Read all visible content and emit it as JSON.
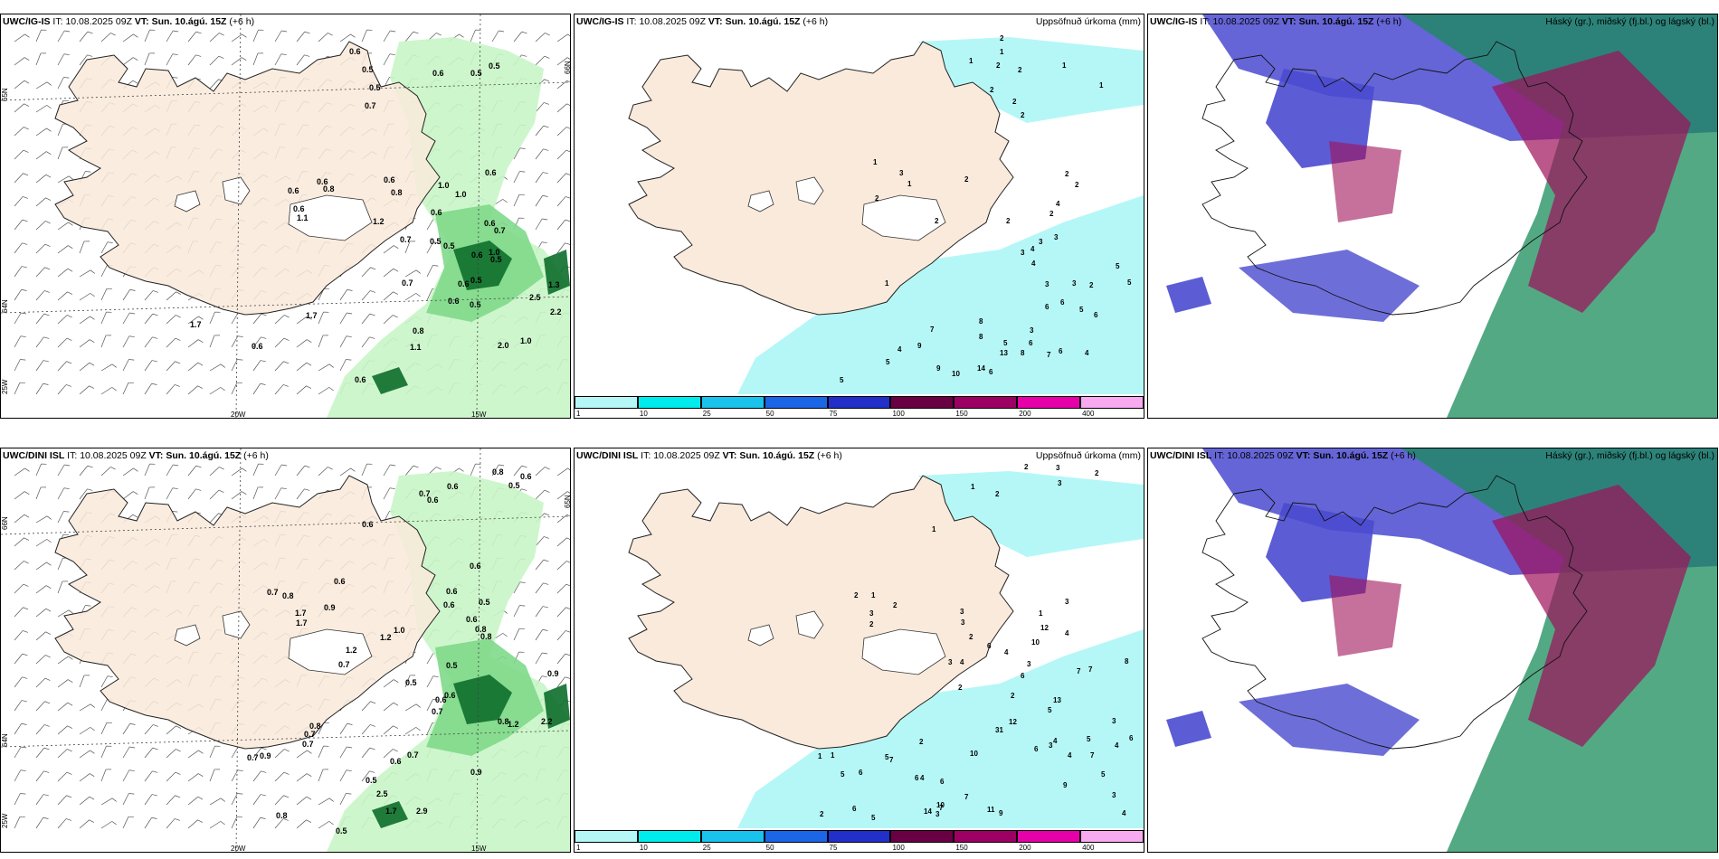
{
  "colors": {
    "land": "#f9eadb",
    "sea": "#ffffff",
    "precip_light": "#c9f5c6",
    "precip_med": "#7fd98a",
    "precip_dark": "#0d6e2b",
    "accum": "#b5f7f7",
    "cloud_high": "#1a8c5a",
    "cloud_mid": "#a0105a",
    "cloud_low": "#4a4ad0"
  },
  "common": {
    "it_label": "IT:",
    "it_value": "10.08.2025 09Z",
    "vt_label": "VT:",
    "vt_value": "Sun. 10.ágú. 15Z",
    "lead": "(+6 h)"
  },
  "titles": {
    "accum": "Uppsöfnuð úrkoma (mm)",
    "cloud": "Háský (gr.), miðský (fj.bl.) og lágský (bl.)"
  },
  "rows": [
    {
      "model": "UWC/IG-IS",
      "precip_labels": [
        [
          "0.6",
          "386",
          "60"
        ],
        [
          "0.5",
          "400",
          "80"
        ],
        [
          "0.5",
          "408",
          "100"
        ],
        [
          "0.7",
          "403",
          "120"
        ],
        [
          "0.6",
          "478",
          "84"
        ],
        [
          "0.5",
          "520",
          "84"
        ],
        [
          "0.5",
          "540",
          "76"
        ],
        [
          "0.6",
          "350",
          "204"
        ],
        [
          "0.8",
          "357",
          "212"
        ],
        [
          "0.6",
          "318",
          "214"
        ],
        [
          "0.6",
          "324",
          "234"
        ],
        [
          "1.1",
          "328",
          "244"
        ],
        [
          "1.2",
          "412",
          "248"
        ],
        [
          "0.6",
          "424",
          "202"
        ],
        [
          "0.8",
          "432",
          "216"
        ],
        [
          "1.0",
          "484",
          "208"
        ],
        [
          "1.0",
          "503",
          "218"
        ],
        [
          "0.6",
          "536",
          "194"
        ],
        [
          "0.6",
          "476",
          "238"
        ],
        [
          "0.7",
          "442",
          "268"
        ],
        [
          "0.5",
          "475",
          "270"
        ],
        [
          "0.5",
          "490",
          "275"
        ],
        [
          "0.6",
          "535",
          "250"
        ],
        [
          "0.7",
          "546",
          "258"
        ],
        [
          "0.6",
          "521",
          "285"
        ],
        [
          "0.5",
          "542",
          "290"
        ],
        [
          "1.0",
          "540",
          "282"
        ],
        [
          "0.7",
          "444",
          "316"
        ],
        [
          "0.6",
          "506",
          "317"
        ],
        [
          "0.5",
          "520",
          "313"
        ],
        [
          "0.6",
          "495",
          "336"
        ],
        [
          "0.5",
          "519",
          "340"
        ],
        [
          "2.5",
          "585",
          "332"
        ],
        [
          "1.3",
          "606",
          "318"
        ],
        [
          "2.2",
          "608",
          "348"
        ],
        [
          "0.8",
          "456",
          "369"
        ],
        [
          "1.1",
          "453",
          "387"
        ],
        [
          "0.6",
          "392",
          "423"
        ],
        [
          "1.7",
          "338",
          "352"
        ],
        [
          "1.7",
          "210",
          "362"
        ],
        [
          "0.6",
          "278",
          "386"
        ],
        [
          "2.0",
          "550",
          "385"
        ],
        [
          "1.0",
          "575",
          "380"
        ]
      ],
      "accum_labels": [
        [
          "2",
          "1105",
          "45"
        ],
        [
          "1",
          "1105",
          "60"
        ],
        [
          "1",
          "1071",
          "70"
        ],
        [
          "2",
          "1101",
          "75"
        ],
        [
          "2",
          "1125",
          "80"
        ],
        [
          "2",
          "1094",
          "102"
        ],
        [
          "2",
          "1119",
          "115"
        ],
        [
          "2",
          "1128",
          "130"
        ],
        [
          "1",
          "1174",
          "75"
        ],
        [
          "1",
          "1215",
          "97"
        ],
        [
          "1",
          "965",
          "182"
        ],
        [
          "3",
          "994",
          "194"
        ],
        [
          "1",
          "1003",
          "206"
        ],
        [
          "2",
          "1066",
          "201"
        ],
        [
          "2",
          "967",
          "222"
        ],
        [
          "2",
          "1033",
          "247"
        ],
        [
          "2",
          "1112",
          "247"
        ],
        [
          "2",
          "1177",
          "195"
        ],
        [
          "2",
          "1188",
          "207"
        ],
        [
          "4",
          "1167",
          "228"
        ],
        [
          "2",
          "1160",
          "239"
        ],
        [
          "3",
          "1165",
          "265"
        ],
        [
          "3",
          "1148",
          "270"
        ],
        [
          "4",
          "1139",
          "278"
        ],
        [
          "3",
          "1128",
          "282"
        ],
        [
          "4",
          "1140",
          "294"
        ],
        [
          "1",
          "978",
          "316"
        ],
        [
          "5",
          "1233",
          "297"
        ],
        [
          "2",
          "1204",
          "318"
        ],
        [
          "5",
          "1246",
          "315"
        ],
        [
          "3",
          "1155",
          "317"
        ],
        [
          "3",
          "1185",
          "316"
        ],
        [
          "6",
          "1172",
          "337"
        ],
        [
          "6",
          "1155",
          "342"
        ],
        [
          "5",
          "1193",
          "345"
        ],
        [
          "6",
          "1209",
          "351"
        ],
        [
          "8",
          "1082",
          "358"
        ],
        [
          "7",
          "1028",
          "367"
        ],
        [
          "9",
          "1014",
          "385"
        ],
        [
          "4",
          "992",
          "389"
        ],
        [
          "8",
          "1082",
          "375"
        ],
        [
          "3",
          "1138",
          "368"
        ],
        [
          "6",
          "1137",
          "382"
        ],
        [
          "5",
          "1109",
          "382"
        ],
        [
          "7",
          "1157",
          "395"
        ],
        [
          "13",
          "1105",
          "393"
        ],
        [
          "8",
          "1128",
          "393"
        ],
        [
          "4",
          "1199",
          "393"
        ],
        [
          "6",
          "1170",
          "391"
        ],
        [
          "14",
          "1080",
          "410"
        ],
        [
          "6",
          "1093",
          "414"
        ],
        [
          "10",
          "1052",
          "416"
        ],
        [
          "9",
          "1035",
          "410"
        ],
        [
          "5",
          "979",
          "403"
        ],
        [
          "5",
          "928",
          "423"
        ]
      ]
    },
    {
      "model": "UWC/DINI ISL",
      "precip_labels": [
        [
          "0.8",
          "544",
          "525"
        ],
        [
          "0.6",
          "575",
          "530"
        ],
        [
          "0.5",
          "562",
          "540"
        ],
        [
          "0.6",
          "494",
          "541"
        ],
        [
          "0.7",
          "463",
          "549"
        ],
        [
          "0.6",
          "472",
          "556"
        ],
        [
          "0.6",
          "400",
          "583"
        ],
        [
          "0.6",
          "519",
          "629"
        ],
        [
          "0.6",
          "369",
          "646"
        ],
        [
          "0.8",
          "312",
          "662"
        ],
        [
          "0.7",
          "295",
          "658"
        ],
        [
          "1.7",
          "326",
          "681"
        ],
        [
          "1.7",
          "327",
          "692"
        ],
        [
          "0.9",
          "358",
          "675"
        ],
        [
          "0.6",
          "493",
          "657"
        ],
        [
          "0.5",
          "529",
          "669"
        ],
        [
          "0.6",
          "490",
          "672"
        ],
        [
          "0.6",
          "515",
          "688"
        ],
        [
          "0.8",
          "525",
          "699"
        ],
        [
          "0.8",
          "531",
          "707"
        ],
        [
          "1.0",
          "435",
          "700"
        ],
        [
          "1.2",
          "420",
          "708"
        ],
        [
          "0.5",
          "493",
          "739"
        ],
        [
          "1.2",
          "382",
          "722"
        ],
        [
          "0.7",
          "374",
          "738"
        ],
        [
          "0.5",
          "448",
          "758"
        ],
        [
          "0.6",
          "491",
          "772"
        ],
        [
          "0.6",
          "481",
          "777"
        ],
        [
          "0.7",
          "477",
          "790"
        ],
        [
          "0.8",
          "342",
          "806"
        ],
        [
          "0.7",
          "336",
          "815"
        ],
        [
          "0.7",
          "334",
          "826"
        ],
        [
          "0.9",
          "287",
          "839"
        ],
        [
          "0.7",
          "273",
          "841"
        ],
        [
          "0.9",
          "520",
          "857"
        ],
        [
          "0.6",
          "431",
          "845"
        ],
        [
          "0.7",
          "450",
          "838"
        ],
        [
          "0.5",
          "404",
          "866"
        ],
        [
          "0.8",
          "305",
          "905"
        ],
        [
          "0.5",
          "371",
          "922"
        ],
        [
          "2.5",
          "416",
          "881"
        ],
        [
          "1.7",
          "426",
          "900"
        ],
        [
          "2.9",
          "460",
          "900"
        ],
        [
          "1.2",
          "561",
          "804"
        ],
        [
          "0.8",
          "550",
          "801"
        ],
        [
          "0.9",
          "605",
          "748"
        ],
        [
          "2.2",
          "598",
          "801"
        ]
      ],
      "accum_labels": [
        [
          "2",
          "1132",
          "519"
        ],
        [
          "3",
          "1167",
          "520"
        ],
        [
          "2",
          "1210",
          "526"
        ],
        [
          "3",
          "1169",
          "537"
        ],
        [
          "1",
          "1073",
          "541"
        ],
        [
          "2",
          "1100",
          "549"
        ],
        [
          "1",
          "1030",
          "588"
        ],
        [
          "2",
          "944",
          "661"
        ],
        [
          "1",
          "963",
          "661"
        ],
        [
          "2",
          "987",
          "672"
        ],
        [
          "3",
          "961",
          "681"
        ],
        [
          "2",
          "961",
          "693"
        ],
        [
          "3",
          "1061",
          "679"
        ],
        [
          "3",
          "1062",
          "691"
        ],
        [
          "1",
          "1148",
          "681"
        ],
        [
          "12",
          "1150",
          "697"
        ],
        [
          "3",
          "1177",
          "668"
        ],
        [
          "10",
          "1140",
          "713"
        ],
        [
          "4",
          "1177",
          "703"
        ],
        [
          "2",
          "1071",
          "707"
        ],
        [
          "6",
          "1091",
          "717"
        ],
        [
          "4",
          "1110",
          "724"
        ],
        [
          "4",
          "1061",
          "735"
        ],
        [
          "3",
          "1048",
          "735"
        ],
        [
          "2",
          "1059",
          "763"
        ],
        [
          "3",
          "1135",
          "737"
        ],
        [
          "6",
          "1128",
          "750"
        ],
        [
          "7",
          "1190",
          "745"
        ],
        [
          "7",
          "1203",
          "743"
        ],
        [
          "8",
          "1243",
          "734"
        ],
        [
          "2",
          "1117",
          "772"
        ],
        [
          "13",
          "1164",
          "777"
        ],
        [
          "5",
          "1158",
          "788"
        ],
        [
          "12",
          "1115",
          "801"
        ],
        [
          "31",
          "1100",
          "810"
        ],
        [
          "6",
          "1143",
          "831"
        ],
        [
          "3",
          "1159",
          "827"
        ],
        [
          "4",
          "1164",
          "822"
        ],
        [
          "3",
          "1229",
          "800"
        ],
        [
          "6",
          "1248",
          "819"
        ],
        [
          "5",
          "1201",
          "820"
        ],
        [
          "4",
          "1180",
          "838"
        ],
        [
          "7",
          "1205",
          "838"
        ],
        [
          "4",
          "1232",
          "827"
        ],
        [
          "2",
          "1016",
          "823"
        ],
        [
          "10",
          "1072",
          "836"
        ],
        [
          "6",
          "1039",
          "867"
        ],
        [
          "6",
          "1011",
          "863"
        ],
        [
          "4",
          "1017",
          "863"
        ],
        [
          "9",
          "1175",
          "871"
        ],
        [
          "5",
          "1217",
          "859"
        ],
        [
          "7",
          "1066",
          "884"
        ],
        [
          "3",
          "1229",
          "882"
        ],
        [
          "11",
          "1091",
          "898"
        ],
        [
          "9",
          "1104",
          "902"
        ],
        [
          "10",
          "1035",
          "893"
        ],
        [
          "4",
          "1240",
          "902"
        ],
        [
          "7",
          "1038",
          "896"
        ],
        [
          "3",
          "1034",
          "903"
        ],
        [
          "14",
          "1021",
          "900"
        ],
        [
          "5",
          "978",
          "840"
        ],
        [
          "7",
          "983",
          "843"
        ],
        [
          "1",
          "904",
          "839"
        ],
        [
          "1",
          "918",
          "838"
        ],
        [
          "5",
          "929",
          "859"
        ],
        [
          "6",
          "949",
          "857"
        ],
        [
          "2",
          "906",
          "903"
        ],
        [
          "6",
          "942",
          "897"
        ],
        [
          "5",
          "963",
          "907"
        ]
      ]
    }
  ],
  "lon_labels": [
    "20W",
    "15W",
    "25W"
  ],
  "lat_labels": [
    "65N",
    "64N",
    "66N"
  ],
  "colorbar": {
    "ticks": [
      "1",
      "10",
      "25",
      "50",
      "75",
      "100",
      "150",
      "200",
      "400"
    ],
    "colors": [
      "#b5f7f7",
      "#00ecec",
      "#19c3ec",
      "#1a66e6",
      "#222fc8",
      "#6a0044",
      "#9c0063",
      "#e600a8",
      "#f7aaf0"
    ]
  }
}
